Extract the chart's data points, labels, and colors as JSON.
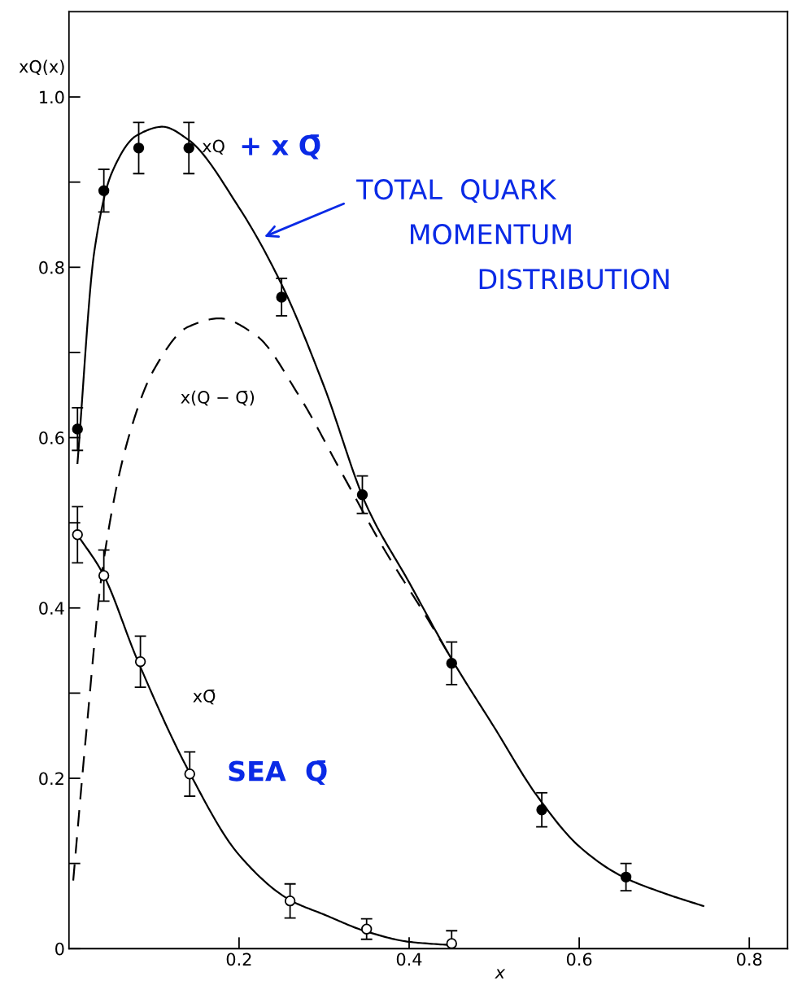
{
  "chart_data": {
    "type": "scatter",
    "xlabel": "x",
    "ylabel": "xQ(x)",
    "xlim": [
      0,
      0.845
    ],
    "ylim": [
      0,
      1.1
    ],
    "xticks": [
      0.2,
      0.4,
      0.6,
      0.8
    ],
    "yticks": [
      0,
      {
        "value": 0.1,
        "label": null
      },
      0.2,
      {
        "value": 0.3,
        "label": null
      },
      0.4,
      {
        "value": 0.5,
        "label": null
      },
      0.6,
      {
        "value": 0.7,
        "label": null
      },
      0.8,
      {
        "value": 0.9,
        "label": null
      },
      {
        "value": 1.0,
        "label": "1.0"
      }
    ],
    "grid": false,
    "legend": false,
    "series": [
      {
        "color": "#000000",
        "marker": "circle",
        "x": [
          0.01,
          0.041,
          0.082,
          0.141,
          0.25,
          0.345,
          0.45,
          0.556,
          0.655
        ],
        "values": [
          0.61,
          0.89,
          0.94,
          0.94,
          0.765,
          0.533,
          0.335,
          0.163,
          0.084
        ],
        "errors": [
          0.025,
          0.025,
          0.03,
          0.03,
          0.022,
          0.022,
          0.025,
          0.02,
          0.016
        ]
      },
      {
        "type": "line",
        "color": "#000000",
        "line_style": "solid",
        "x": [
          0.01,
          0.03,
          0.05,
          0.08,
          0.11,
          0.14,
          0.2,
          0.25,
          0.3,
          0.35,
          0.4,
          0.45,
          0.5,
          0.55,
          0.6,
          0.65,
          0.7,
          0.746
        ],
        "values": [
          0.57,
          0.82,
          0.91,
          0.955,
          0.965,
          0.95,
          0.87,
          0.78,
          0.66,
          0.52,
          0.43,
          0.34,
          0.26,
          0.18,
          0.12,
          0.085,
          0.065,
          0.05
        ]
      },
      {
        "type": "line",
        "color": "#000000",
        "line_style": "dashed",
        "x": [
          0.005,
          0.02,
          0.04,
          0.07,
          0.1,
          0.14,
          0.177,
          0.22,
          0.27,
          0.32,
          0.37,
          0.42,
          0.45
        ],
        "values": [
          0.08,
          0.25,
          0.45,
          0.6,
          0.68,
          0.73,
          0.74,
          0.72,
          0.65,
          0.56,
          0.47,
          0.39,
          0.34
        ]
      },
      {
        "color": "#ffffff",
        "marker": "circle",
        "x": [
          0.01,
          0.041,
          0.084,
          0.142,
          0.26,
          0.35,
          0.45
        ],
        "values": [
          0.486,
          0.438,
          0.337,
          0.205,
          0.056,
          0.023,
          0.006
        ],
        "errors": [
          0.033,
          0.03,
          0.03,
          0.026,
          0.02,
          0.012,
          0.015
        ]
      },
      {
        "type": "line",
        "color": "#000000",
        "line_style": "solid",
        "x": [
          0.01,
          0.04,
          0.08,
          0.14,
          0.2,
          0.26,
          0.3,
          0.35,
          0.4,
          0.45
        ],
        "values": [
          0.486,
          0.44,
          0.34,
          0.21,
          0.11,
          0.057,
          0.04,
          0.02,
          0.008,
          0.004
        ]
      }
    ],
    "annotations": [
      "xQ",
      "+ x Q̄",
      "x(Q − Q̄)",
      "xQ̄",
      "SEA  Q̄",
      "TOTAL  QUARK\n      MOMENTUM\n              DISTRIBUTION"
    ]
  }
}
